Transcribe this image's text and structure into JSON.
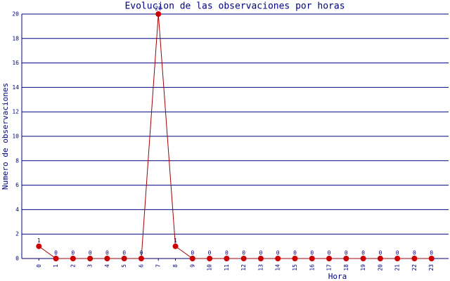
{
  "chart_data": {
    "type": "line",
    "title": "Evolucion de las observaciones por horas",
    "x_label": "Hora",
    "y_label": "Numero de observaciones",
    "categories": [
      "0",
      "1",
      "2",
      "3",
      "4",
      "5",
      "6",
      "7",
      "8",
      "9",
      "10",
      "11",
      "12",
      "13",
      "14",
      "15",
      "16",
      "17",
      "18",
      "19",
      "20",
      "21",
      "22",
      "23"
    ],
    "series": [
      {
        "name": "observaciones",
        "color": "#cc0000",
        "line_color": "#a00000",
        "values": [
          1,
          0,
          0,
          0,
          0,
          0,
          0,
          20,
          1,
          0,
          0,
          0,
          0,
          0,
          0,
          0,
          0,
          0,
          0,
          0,
          0,
          0,
          0,
          0
        ]
      }
    ],
    "ylim": [
      0,
      20
    ],
    "yticks": [
      0,
      2,
      4,
      6,
      8,
      10,
      12,
      14,
      16,
      18,
      20
    ],
    "grid": true
  }
}
